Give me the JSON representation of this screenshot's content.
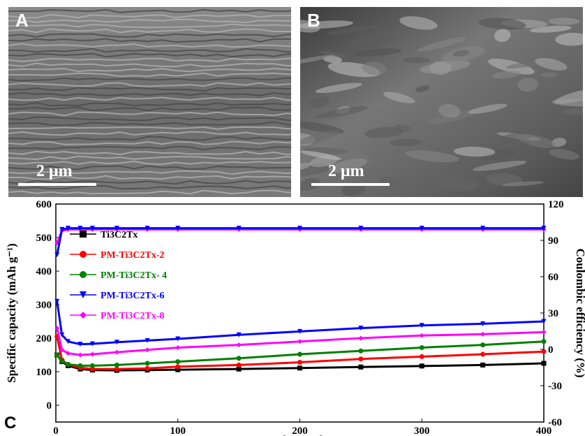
{
  "panels": {
    "a": {
      "label": "A",
      "scale_bar": "2 μm"
    },
    "b": {
      "label": "B",
      "scale_bar": "2 μm"
    },
    "c": {
      "label": "C"
    }
  },
  "chart_data": {
    "type": "line",
    "xlabel": "Cycle number",
    "ylabel": "Specific capacity (mAh g⁻¹)",
    "y2label": "Coulombic efficiency (%)",
    "xlim": [
      0,
      400
    ],
    "ylim": [
      -50,
      600
    ],
    "y2lim": [
      -60,
      120
    ],
    "xticks": [
      0,
      100,
      200,
      300,
      400
    ],
    "yticks": [
      0,
      100,
      200,
      300,
      400,
      500,
      600
    ],
    "y2ticks": [
      -60,
      -30,
      0,
      30,
      60,
      90,
      120
    ],
    "grid": false,
    "legend_position": "top-left",
    "x": [
      1,
      5,
      10,
      20,
      30,
      50,
      75,
      100,
      150,
      200,
      250,
      300,
      350,
      400
    ],
    "series": [
      {
        "name": "Ti3C2Tx",
        "color": "#000000",
        "marker": "square",
        "axis": "left",
        "values": [
          150,
          130,
          118,
          108,
          105,
          104,
          105,
          106,
          108,
          111,
          114,
          117,
          120,
          125
        ]
      },
      {
        "name": "PM-Ti3C2Tx-2",
        "color": "#ff0000",
        "marker": "circle",
        "axis": "left",
        "values": [
          205,
          135,
          122,
          112,
          108,
          108,
          110,
          115,
          120,
          128,
          138,
          145,
          152,
          160
        ]
      },
      {
        "name": "PM-Ti3C2Tx- 4",
        "color": "#008000",
        "marker": "circle",
        "axis": "left",
        "values": [
          150,
          132,
          122,
          118,
          118,
          120,
          125,
          130,
          140,
          152,
          162,
          172,
          180,
          190
        ]
      },
      {
        "name": "PM-Ti3C2Tx-6",
        "color": "#0000ff",
        "marker": "triangle-down",
        "axis": "left",
        "values": [
          310,
          210,
          190,
          182,
          183,
          188,
          193,
          198,
          210,
          220,
          230,
          238,
          243,
          250
        ]
      },
      {
        "name": "PM-Ti3C2Tx-8",
        "color": "#ff00ff",
        "marker": "diamond",
        "axis": "left",
        "values": [
          230,
          165,
          155,
          150,
          152,
          158,
          165,
          172,
          180,
          190,
          200,
          208,
          212,
          218
        ]
      },
      {
        "name": "",
        "color": "#ff00ff",
        "marker": "diamond",
        "axis": "right",
        "values": [
          88,
          98,
          99,
          99,
          99,
          99,
          99,
          99,
          99,
          99,
          99,
          99,
          99,
          99
        ]
      },
      {
        "name": "",
        "color": "#0000ff",
        "marker": "triangle-down",
        "axis": "right",
        "values": [
          78,
          99,
          100,
          100,
          100,
          100,
          100,
          100,
          100,
          100,
          100,
          100,
          100,
          100
        ]
      }
    ]
  }
}
